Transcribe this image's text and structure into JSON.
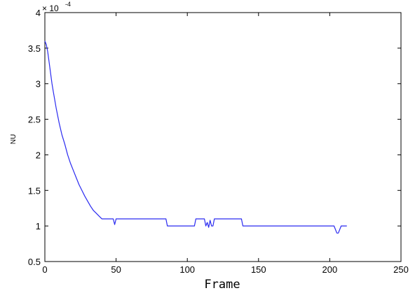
{
  "chart_data": {
    "type": "line",
    "title": "",
    "xlabel": "Frame",
    "ylabel": "NU",
    "y_exponent_base": "× 10",
    "y_exponent_power": "-4",
    "xlim": [
      0,
      250
    ],
    "ylim": [
      0.5,
      4
    ],
    "grid": false,
    "legend": "none",
    "x_ticks": [
      0,
      50,
      100,
      150,
      200,
      250
    ],
    "y_ticks": [
      0.5,
      1,
      1.5,
      2,
      2.5,
      3,
      3.5,
      4
    ],
    "x_tick_labels": [
      "0",
      "50",
      "100",
      "150",
      "200",
      "250"
    ],
    "y_tick_labels": [
      "0.5",
      "1",
      "1.5",
      "2",
      "2.5",
      "3",
      "3.5",
      "4"
    ],
    "series": [
      {
        "color": "#2a2af0",
        "x": [
          0,
          1,
          2,
          3,
          4,
          5,
          6,
          8,
          10,
          12,
          14,
          16,
          18,
          20,
          22,
          24,
          26,
          28,
          30,
          32,
          34,
          36,
          38,
          40,
          44,
          48,
          49,
          50,
          51,
          55,
          60,
          70,
          80,
          85,
          86,
          90,
          100,
          105,
          106,
          110,
          112,
          113,
          114,
          115,
          116,
          117,
          118,
          119,
          120,
          125,
          130,
          135,
          138,
          139,
          140,
          150,
          160,
          170,
          180,
          190,
          200,
          203,
          204,
          205,
          206,
          207,
          208,
          210,
          212
        ],
        "y": [
          3.6,
          3.55,
          3.45,
          3.3,
          3.15,
          3.0,
          2.88,
          2.65,
          2.45,
          2.28,
          2.15,
          2.0,
          1.88,
          1.78,
          1.68,
          1.58,
          1.5,
          1.42,
          1.35,
          1.28,
          1.22,
          1.18,
          1.14,
          1.1,
          1.1,
          1.1,
          1.02,
          1.1,
          1.1,
          1.1,
          1.1,
          1.1,
          1.1,
          1.1,
          1.0,
          1.0,
          1.0,
          1.0,
          1.1,
          1.1,
          1.1,
          1.0,
          1.05,
          0.98,
          1.08,
          1.0,
          1.0,
          1.1,
          1.1,
          1.1,
          1.1,
          1.1,
          1.1,
          1.0,
          1.0,
          1.0,
          1.0,
          1.0,
          1.0,
          1.0,
          1.0,
          1.0,
          0.95,
          0.9,
          0.9,
          0.95,
          1.0,
          1.0,
          1.0
        ]
      }
    ]
  }
}
